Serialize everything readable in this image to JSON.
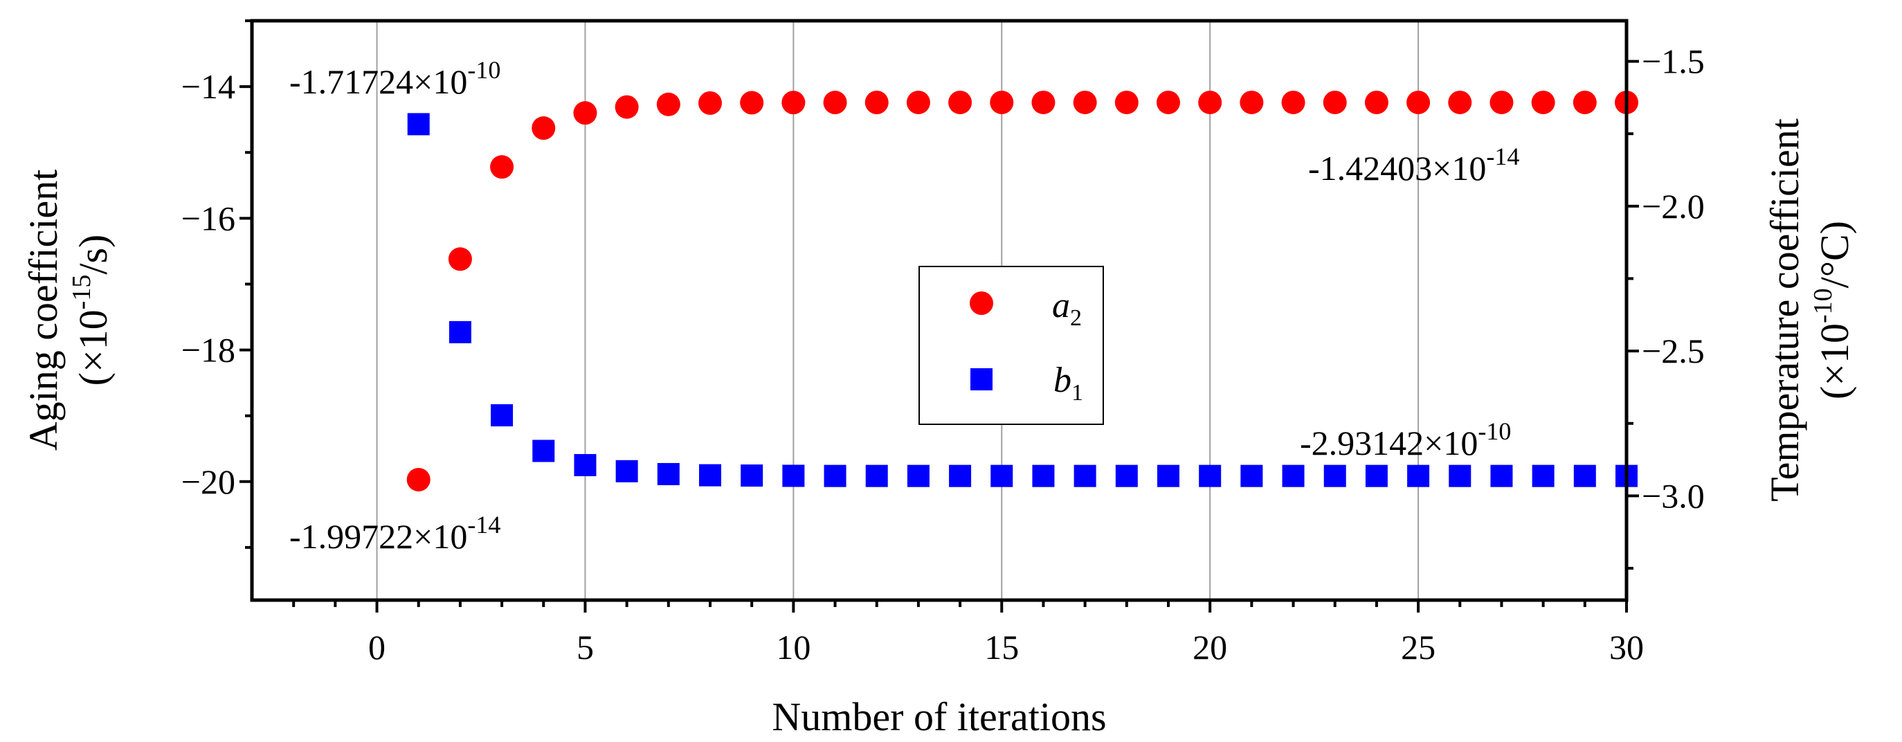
{
  "chart_data": {
    "type": "scatter",
    "x_axis": {
      "label": "Number of iterations",
      "range": [
        -3,
        30
      ],
      "ticks": [
        0,
        5,
        10,
        15,
        20,
        25,
        30
      ],
      "tick_labels": [
        "0",
        "5",
        "10",
        "15",
        "20",
        "25",
        "30"
      ],
      "grid": true
    },
    "y_left": {
      "label_line1": "Aging coefficient",
      "label_line2_prefix": "(×10",
      "label_line2_sup": "-15",
      "label_line2_suffix": "/s)",
      "range": [
        -21.8,
        -13.0
      ],
      "ticks": [
        -14,
        -16,
        -18,
        -20
      ],
      "tick_labels": [
        "−14",
        "−16",
        "−18",
        "−20"
      ]
    },
    "y_right": {
      "label_line1": "Temperature coefficient",
      "label_line2_prefix": "(×10",
      "label_line2_sup": "-10",
      "label_line2_suffix": "/°C)",
      "range": [
        -3.36,
        -1.36
      ],
      "ticks": [
        -1.5,
        -2.0,
        -2.5,
        -3.0
      ],
      "tick_labels": [
        "−1.5",
        "−2.0",
        "−2.5",
        "−3.0"
      ]
    },
    "series": [
      {
        "name": "a",
        "subscript": "2",
        "axis": "left",
        "marker": "circle",
        "color": "#ff0000",
        "x": [
          1,
          2,
          3,
          4,
          5,
          6,
          7,
          8,
          9,
          10,
          11,
          12,
          13,
          14,
          15,
          16,
          17,
          18,
          19,
          20,
          21,
          22,
          23,
          24,
          25,
          26,
          27,
          28,
          29,
          30
        ],
        "values": [
          -19.97,
          -16.62,
          -15.22,
          -14.63,
          -14.4,
          -14.31,
          -14.27,
          -14.25,
          -14.245,
          -14.242,
          -14.241,
          -14.2405,
          -14.2404,
          -14.2403,
          -14.2403,
          -14.2403,
          -14.2403,
          -14.2403,
          -14.2403,
          -14.2403,
          -14.2403,
          -14.2403,
          -14.2403,
          -14.2403,
          -14.2403,
          -14.2403,
          -14.2403,
          -14.2403,
          -14.2403,
          -14.2403
        ]
      },
      {
        "name": "b",
        "subscript": "1",
        "axis": "right",
        "marker": "square",
        "color": "#0000ff",
        "x": [
          1,
          2,
          3,
          4,
          5,
          6,
          7,
          8,
          9,
          10,
          11,
          12,
          13,
          14,
          15,
          16,
          17,
          18,
          19,
          20,
          21,
          22,
          23,
          24,
          25,
          26,
          27,
          28,
          29,
          30
        ],
        "values": [
          -1.717,
          -2.435,
          -2.722,
          -2.845,
          -2.894,
          -2.915,
          -2.925,
          -2.929,
          -2.93,
          -2.931,
          -2.9314,
          -2.9314,
          -2.9314,
          -2.9314,
          -2.9314,
          -2.9314,
          -2.9314,
          -2.9314,
          -2.9314,
          -2.9314,
          -2.9314,
          -2.9314,
          -2.9314,
          -2.9314,
          -2.9314,
          -2.9314,
          -2.9314,
          -2.9314,
          -2.9314,
          -2.9314
        ]
      }
    ],
    "annotations": [
      {
        "id": "b1-start",
        "mantissa": "-1.71724×10",
        "exponent": "-10"
      },
      {
        "id": "a2-final",
        "mantissa": "-1.42403×10",
        "exponent": "-14"
      },
      {
        "id": "b1-final",
        "mantissa": "-2.93142×10",
        "exponent": "-10"
      },
      {
        "id": "a2-start",
        "mantissa": "-1.99722×10",
        "exponent": "-14"
      }
    ],
    "legend_position": "center"
  }
}
